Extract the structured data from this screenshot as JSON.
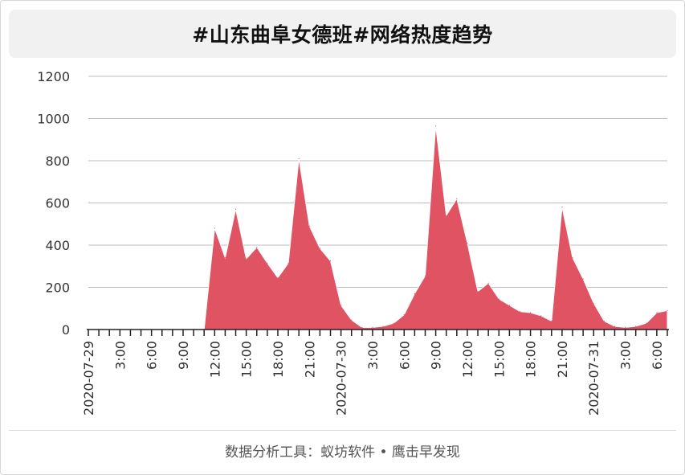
{
  "title": "#山东曲阜女德班#网络热度趋势",
  "footer": "数据分析工具：蚁坊软件 • 鹰击早发现",
  "colors": {
    "area": "#e05363",
    "grid": "#bdbdbd",
    "axis": "#222222",
    "title_bg": "#f1f1f1"
  },
  "chart_data": {
    "type": "area",
    "title": "#山东曲阜女德班#网络热度趋势",
    "xlabel": "",
    "ylabel": "",
    "ylim": [
      0,
      1200
    ],
    "yticks": [
      0,
      200,
      400,
      600,
      800,
      1000,
      1200
    ],
    "grid": true,
    "x_tick_labels": [
      {
        "index": 0,
        "label": "2020-07-29"
      },
      {
        "index": 3,
        "label": "3:00"
      },
      {
        "index": 6,
        "label": "6:00"
      },
      {
        "index": 9,
        "label": "9:00"
      },
      {
        "index": 12,
        "label": "12:00"
      },
      {
        "index": 15,
        "label": "15:00"
      },
      {
        "index": 18,
        "label": "18:00"
      },
      {
        "index": 21,
        "label": "21:00"
      },
      {
        "index": 24,
        "label": "2020-07-30"
      },
      {
        "index": 27,
        "label": "3:00"
      },
      {
        "index": 30,
        "label": "6:00"
      },
      {
        "index": 33,
        "label": "9:00"
      },
      {
        "index": 36,
        "label": "12:00"
      },
      {
        "index": 39,
        "label": "15:00"
      },
      {
        "index": 42,
        "label": "18:00"
      },
      {
        "index": 45,
        "label": "21:00"
      },
      {
        "index": 48,
        "label": "2020-07-31"
      },
      {
        "index": 51,
        "label": "3:00"
      },
      {
        "index": 54,
        "label": "6:00"
      }
    ],
    "series": [
      {
        "values": [
          0,
          0,
          0,
          0,
          0,
          0,
          0,
          0,
          0,
          0,
          0,
          0,
          480,
          340,
          570,
          335,
          390,
          315,
          245,
          315,
          810,
          490,
          385,
          325,
          115,
          45,
          10,
          10,
          15,
          30,
          70,
          170,
          255,
          965,
          540,
          620,
          410,
          180,
          220,
          145,
          115,
          85,
          80,
          65,
          40,
          580,
          340,
          240,
          125,
          40,
          15,
          10,
          15,
          30,
          80,
          90
        ]
      }
    ]
  }
}
